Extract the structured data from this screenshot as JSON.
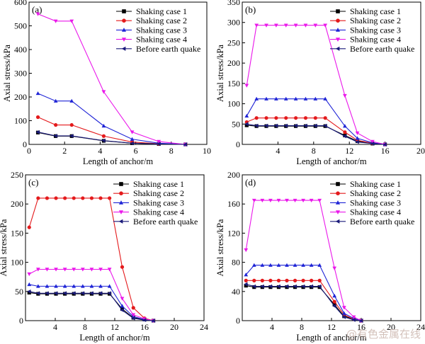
{
  "watermark": "@有色金属在线",
  "chart_data": [
    {
      "panel_label": "(a)",
      "type": "line",
      "xlabel": "Length of anchor/m",
      "ylabel": "Axial stress/kPa",
      "xlim": [
        0,
        10
      ],
      "ylim": [
        0,
        600
      ],
      "xticks": [
        0,
        2,
        4,
        6,
        8,
        10
      ],
      "yticks": [
        0,
        100,
        200,
        300,
        400,
        500,
        600
      ],
      "grid": false,
      "legend_position": "top-right",
      "series": [
        {
          "name": "Shaking case 1",
          "color": "#000000",
          "marker": "square",
          "x": [
            0.5,
            1.5,
            2.4,
            4.2,
            5.8,
            7.3,
            8.8
          ],
          "y": [
            50,
            35,
            35,
            15,
            5,
            2,
            0
          ]
        },
        {
          "name": "Shaking case 2",
          "color": "#e41a1c",
          "marker": "circle",
          "x": [
            0.5,
            1.5,
            2.4,
            4.2,
            5.8,
            7.3,
            8.8
          ],
          "y": [
            115,
            82,
            82,
            35,
            10,
            3,
            0
          ]
        },
        {
          "name": "Shaking case 3",
          "color": "#1f24d6",
          "marker": "triangle-up",
          "x": [
            0.5,
            1.5,
            2.4,
            4.2,
            5.8,
            7.3,
            8.8
          ],
          "y": [
            215,
            183,
            183,
            78,
            22,
            5,
            0
          ]
        },
        {
          "name": "Shaking case 4",
          "color": "#ea17ea",
          "marker": "triangle-down",
          "x": [
            0.5,
            1.5,
            2.4,
            4.2,
            5.8,
            7.3,
            8.8
          ],
          "y": [
            550,
            520,
            520,
            222,
            52,
            12,
            0
          ]
        },
        {
          "name": "Before earth quake",
          "color": "#1a1a7a",
          "marker": "triangle-left",
          "x": [
            0.5,
            1.5,
            2.4,
            4.2,
            5.8,
            7.3,
            8.8
          ],
          "y": [
            52,
            36,
            36,
            16,
            5,
            2,
            0
          ]
        }
      ]
    },
    {
      "panel_label": "(b)",
      "type": "line",
      "xlabel": "Length of anchor/m",
      "ylabel": "Axial stress/kPa",
      "xlim": [
        0,
        20
      ],
      "ylim": [
        0,
        350
      ],
      "xticks": [
        4,
        8,
        12,
        16,
        20
      ],
      "yticks": [
        0,
        50,
        100,
        150,
        200,
        250,
        300,
        350
      ],
      "grid": false,
      "legend_position": "top-right",
      "series": [
        {
          "name": "Shaking case 1",
          "color": "#000000",
          "marker": "square",
          "x": [
            0.5,
            1.6,
            2.7,
            3.8,
            4.9,
            6.0,
            7.1,
            8.2,
            9.3,
            11.5,
            12.9,
            14.6,
            16.0
          ],
          "y": [
            47,
            45,
            45,
            45,
            45,
            45,
            45,
            45,
            45,
            22,
            8,
            2,
            0
          ]
        },
        {
          "name": "Shaking case 2",
          "color": "#e41a1c",
          "marker": "circle",
          "x": [
            0.5,
            1.6,
            2.7,
            3.8,
            4.9,
            6.0,
            7.1,
            8.2,
            9.3,
            11.5,
            12.9,
            14.6,
            16.0
          ],
          "y": [
            55,
            65,
            65,
            65,
            65,
            65,
            65,
            65,
            65,
            30,
            10,
            3,
            0
          ]
        },
        {
          "name": "Shaking case 3",
          "color": "#1f24d6",
          "marker": "triangle-up",
          "x": [
            0.5,
            1.6,
            2.7,
            3.8,
            4.9,
            6.0,
            7.1,
            8.2,
            9.3,
            11.5,
            12.9,
            14.6,
            16.0
          ],
          "y": [
            70,
            112,
            112,
            112,
            112,
            112,
            112,
            112,
            112,
            45,
            15,
            4,
            0
          ]
        },
        {
          "name": "Shaking case 4",
          "color": "#ea17ea",
          "marker": "triangle-down",
          "x": [
            0.5,
            1.6,
            2.7,
            3.8,
            4.9,
            6.0,
            7.1,
            8.2,
            9.3,
            11.5,
            12.9,
            14.6,
            16.0
          ],
          "y": [
            145,
            293,
            293,
            293,
            293,
            293,
            293,
            293,
            293,
            120,
            28,
            7,
            0
          ]
        },
        {
          "name": "Before earth quake",
          "color": "#1a1a7a",
          "marker": "triangle-left",
          "x": [
            0.5,
            1.6,
            2.7,
            3.8,
            4.9,
            6.0,
            7.1,
            8.2,
            9.3,
            11.5,
            12.9,
            14.6,
            16.0
          ],
          "y": [
            50,
            46,
            46,
            46,
            46,
            46,
            46,
            46,
            46,
            20,
            6,
            2,
            0
          ]
        }
      ]
    },
    {
      "panel_label": "(c)",
      "type": "line",
      "xlabel": "Length of anchor/m",
      "ylabel": "Axial stress/kPa",
      "xlim": [
        0,
        24
      ],
      "ylim": [
        0,
        250
      ],
      "xticks": [
        4,
        8,
        12,
        16,
        20,
        24
      ],
      "yticks": [
        0,
        50,
        100,
        150,
        200,
        250
      ],
      "grid": false,
      "legend_position": "top-right",
      "series": [
        {
          "name": "Shaking case 1",
          "color": "#000000",
          "marker": "square",
          "x": [
            0.5,
            1.7,
            2.9,
            4.1,
            5.3,
            6.5,
            7.7,
            8.9,
            10.1,
            11.3,
            13.0,
            14.5,
            16.0,
            17.2
          ],
          "y": [
            48,
            46,
            46,
            46,
            46,
            46,
            46,
            46,
            46,
            46,
            20,
            5,
            2,
            0
          ]
        },
        {
          "name": "Shaking case 2",
          "color": "#e41a1c",
          "marker": "circle",
          "x": [
            0.5,
            1.7,
            2.9,
            4.1,
            5.3,
            6.5,
            7.7,
            8.9,
            10.1,
            11.3,
            13.0,
            14.5,
            16.0,
            17.2
          ],
          "y": [
            160,
            210,
            210,
            210,
            210,
            210,
            210,
            210,
            210,
            210,
            92,
            22,
            4,
            0
          ]
        },
        {
          "name": "Shaking case 3",
          "color": "#1f24d6",
          "marker": "triangle-up",
          "x": [
            0.5,
            1.7,
            2.9,
            4.1,
            5.3,
            6.5,
            7.7,
            8.9,
            10.1,
            11.3,
            13.0,
            14.5,
            16.0,
            17.2
          ],
          "y": [
            62,
            59,
            59,
            59,
            59,
            59,
            59,
            59,
            59,
            59,
            25,
            7,
            2,
            0
          ]
        },
        {
          "name": "Shaking case 4",
          "color": "#ea17ea",
          "marker": "triangle-down",
          "x": [
            0.5,
            1.7,
            2.9,
            4.1,
            5.3,
            6.5,
            7.7,
            8.9,
            10.1,
            11.3,
            13.0,
            14.5,
            16.0,
            17.2
          ],
          "y": [
            80,
            88,
            88,
            88,
            88,
            88,
            88,
            88,
            88,
            88,
            38,
            10,
            3,
            0
          ]
        },
        {
          "name": "Before earth quake",
          "color": "#1a1a7a",
          "marker": "triangle-left",
          "x": [
            0.5,
            1.7,
            2.9,
            4.1,
            5.3,
            6.5,
            7.7,
            8.9,
            10.1,
            11.3,
            13.0,
            14.5,
            16.0,
            17.2
          ],
          "y": [
            50,
            47,
            47,
            47,
            47,
            47,
            47,
            47,
            47,
            47,
            18,
            4,
            1,
            0
          ]
        }
      ]
    },
    {
      "panel_label": "(d)",
      "type": "line",
      "xlabel": "Length of anchor/m",
      "ylabel": "Axial stress/kPa",
      "xlim": [
        0,
        24
      ],
      "ylim": [
        0,
        200
      ],
      "xticks": [
        4,
        8,
        12,
        16,
        20,
        24
      ],
      "yticks": [
        0,
        40,
        80,
        120,
        160,
        200
      ],
      "grid": false,
      "legend_position": "top-right",
      "series": [
        {
          "name": "Shaking case 1",
          "color": "#000000",
          "marker": "square",
          "x": [
            0.5,
            1.6,
            2.7,
            3.8,
            4.9,
            6.0,
            7.1,
            8.2,
            9.3,
            10.4,
            12.4,
            13.7,
            15.0,
            16.0
          ],
          "y": [
            48,
            46,
            46,
            46,
            46,
            46,
            46,
            46,
            46,
            46,
            22,
            6,
            2,
            0
          ]
        },
        {
          "name": "Shaking case 2",
          "color": "#e41a1c",
          "marker": "circle",
          "x": [
            0.5,
            1.6,
            2.7,
            3.8,
            4.9,
            6.0,
            7.1,
            8.2,
            9.3,
            10.4,
            12.4,
            13.7,
            15.0,
            16.0
          ],
          "y": [
            55,
            55,
            55,
            55,
            55,
            55,
            55,
            55,
            55,
            55,
            26,
            8,
            2,
            0
          ]
        },
        {
          "name": "Shaking case 3",
          "color": "#1f24d6",
          "marker": "triangle-up",
          "x": [
            0.5,
            1.6,
            2.7,
            3.8,
            4.9,
            6.0,
            7.1,
            8.2,
            9.3,
            10.4,
            12.4,
            13.7,
            15.0,
            16.0
          ],
          "y": [
            63,
            76,
            76,
            76,
            76,
            76,
            76,
            76,
            76,
            76,
            34,
            10,
            3,
            0
          ]
        },
        {
          "name": "Shaking case 4",
          "color": "#ea17ea",
          "marker": "triangle-down",
          "x": [
            0.5,
            1.6,
            2.7,
            3.8,
            4.9,
            6.0,
            7.1,
            8.2,
            9.3,
            10.4,
            12.4,
            13.7,
            15.0,
            16.0
          ],
          "y": [
            97,
            165,
            165,
            165,
            165,
            165,
            165,
            165,
            165,
            165,
            72,
            18,
            5,
            0
          ]
        },
        {
          "name": "Before earth quake",
          "color": "#1a1a7a",
          "marker": "triangle-left",
          "x": [
            0.5,
            1.6,
            2.7,
            3.8,
            4.9,
            6.0,
            7.1,
            8.2,
            9.3,
            10.4,
            12.4,
            13.7,
            15.0,
            16.0
          ],
          "y": [
            50,
            47,
            47,
            47,
            47,
            47,
            47,
            47,
            47,
            47,
            20,
            5,
            1,
            0
          ]
        }
      ]
    }
  ]
}
